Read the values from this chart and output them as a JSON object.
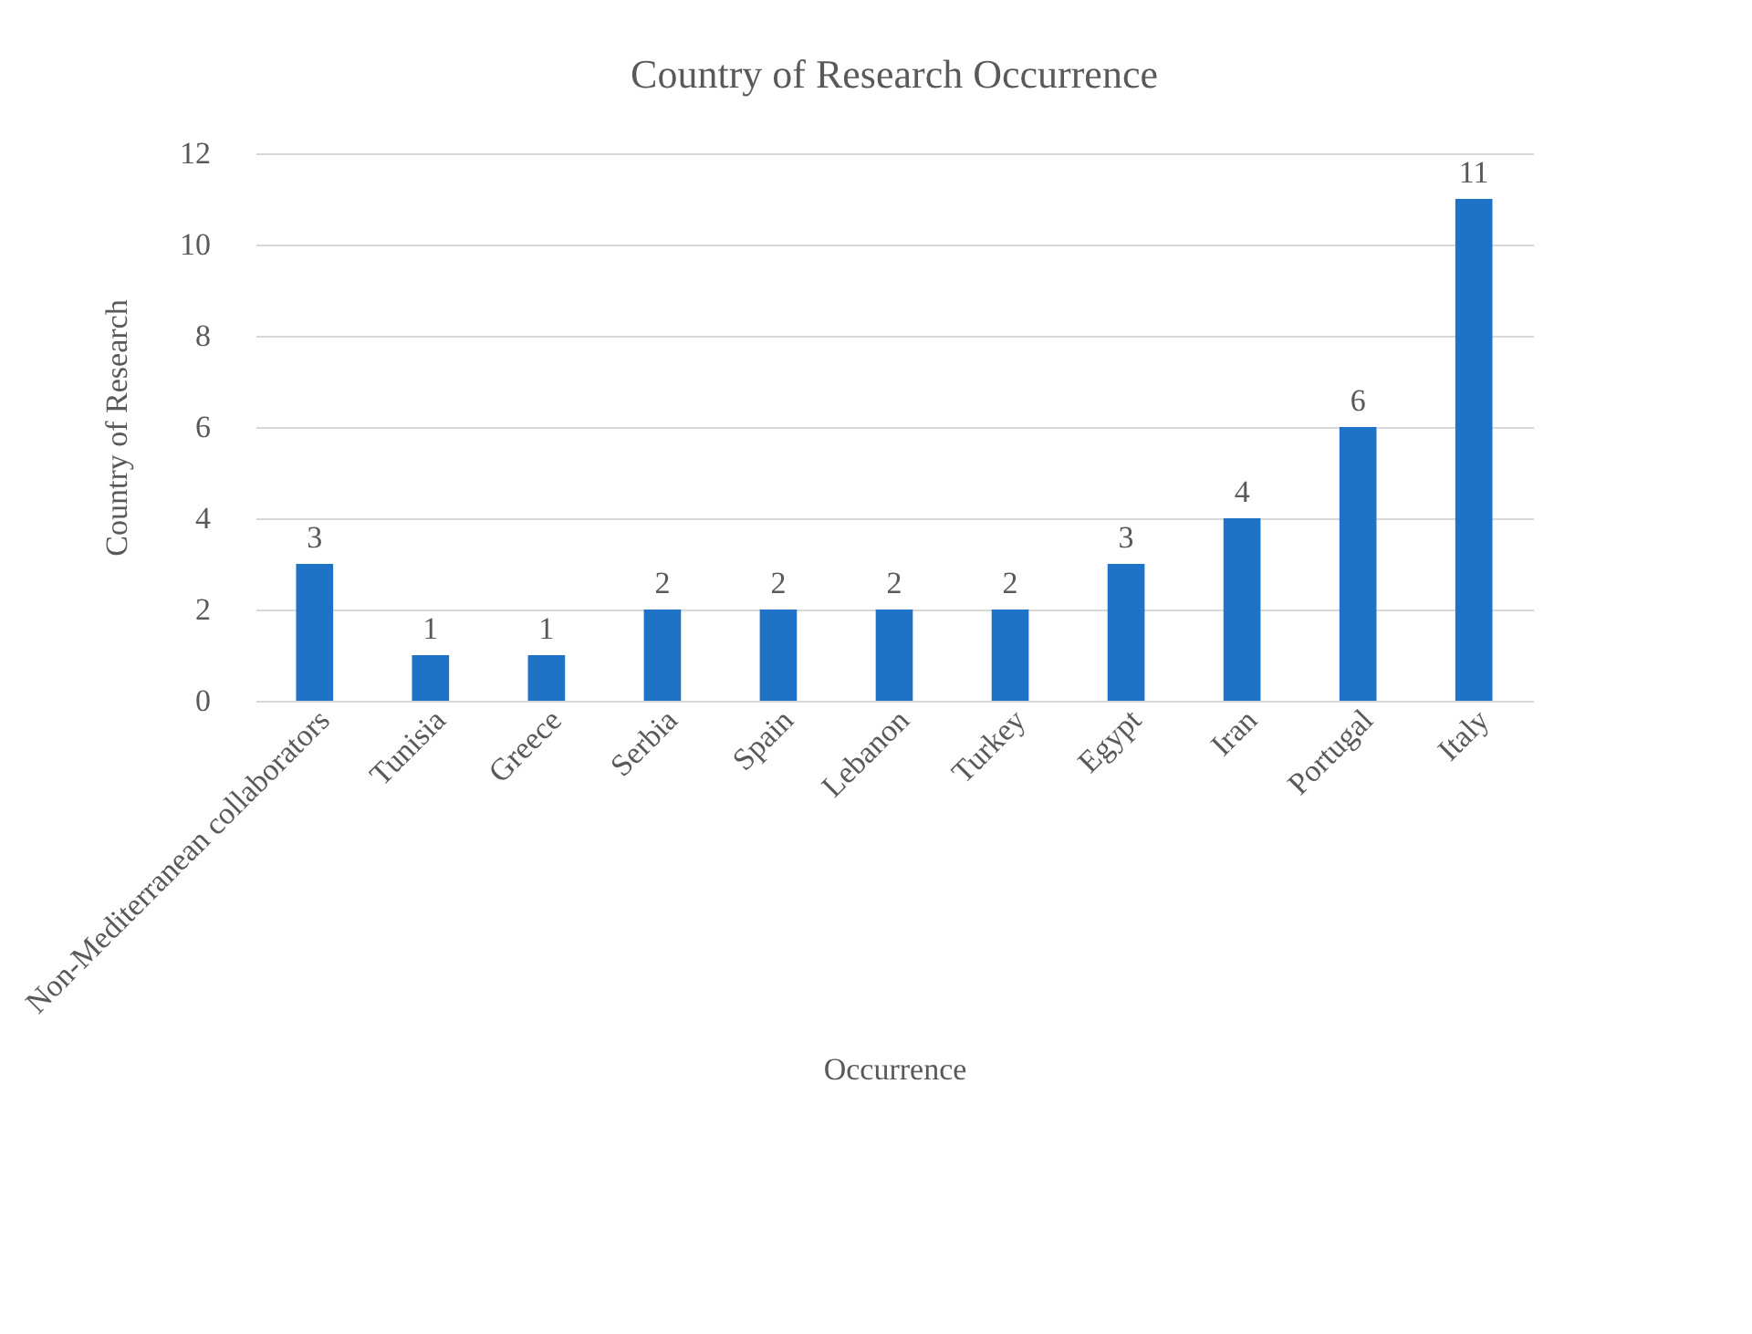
{
  "chart_data": {
    "type": "bar",
    "title": "Country of Research Occurrence",
    "xlabel": "Occurrence",
    "ylabel": "Country of Research",
    "categories": [
      "Non-Mediterranean collaborators",
      "Tunisia",
      "Greece",
      "Serbia",
      "Spain",
      "Lebanon",
      "Turkey",
      "Egypt",
      "Iran",
      "Portugal",
      "Italy"
    ],
    "values": [
      3,
      1,
      1,
      2,
      2,
      2,
      2,
      3,
      4,
      6,
      11
    ],
    "color": "#1f73c7",
    "ylim": [
      0,
      12
    ],
    "yticks": [
      0,
      2,
      4,
      6,
      8,
      10,
      12
    ],
    "grid": "y",
    "data_labels": true
  }
}
